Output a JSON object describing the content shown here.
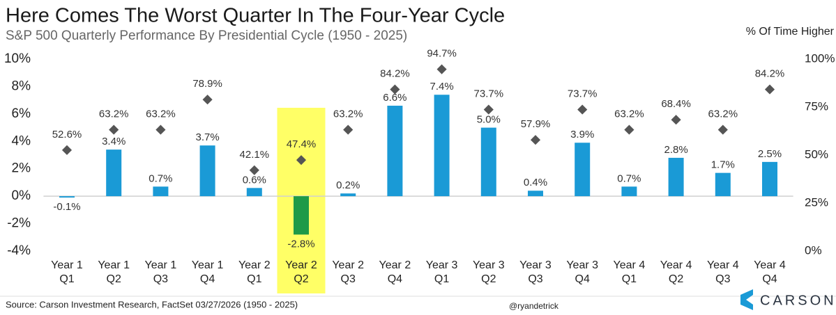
{
  "chart_data": {
    "type": "bar",
    "title": "Here Comes The Worst Quarter In The Four-Year Cycle",
    "subtitle": "S&P 500 Quarterly Performance By Presidential Cycle (1950 - 2025)",
    "y2_label": "% Of Time Higher",
    "categories": [
      "Year 1\nQ1",
      "Year 1\nQ2",
      "Year 1\nQ3",
      "Year 1\nQ4",
      "Year 2\nQ1",
      "Year 2\nQ2",
      "Year 2\nQ3",
      "Year 2\nQ4",
      "Year 3\nQ1",
      "Year 3\nQ2",
      "Year 3\nQ3",
      "Year 3\nQ4",
      "Year 4\nQ1",
      "Year 4\nQ2",
      "Year 4\nQ3",
      "Year 4\nQ4"
    ],
    "series": [
      {
        "type": "bar",
        "colors": [
          "#1a9ad6",
          "#1a9ad6",
          "#1a9ad6",
          "#1a9ad6",
          "#1a9ad6",
          "#1e9a48",
          "#1a9ad6",
          "#1a9ad6",
          "#1a9ad6",
          "#1a9ad6",
          "#1a9ad6",
          "#1a9ad6",
          "#1a9ad6",
          "#1a9ad6",
          "#1a9ad6",
          "#1a9ad6"
        ],
        "values": [
          -0.1,
          3.4,
          0.7,
          3.7,
          0.6,
          -2.8,
          0.2,
          6.6,
          7.4,
          5.0,
          0.4,
          3.9,
          0.7,
          2.8,
          1.7,
          2.5
        ],
        "value_labels": [
          "-0.1%",
          "3.4%",
          "0.7%",
          "3.7%",
          "0.6%",
          "-2.8%",
          "0.2%",
          "6.6%",
          "7.4%",
          "5.0%",
          "0.4%",
          "3.9%",
          "0.7%",
          "2.8%",
          "1.7%",
          "2.5%"
        ]
      },
      {
        "type": "scatter",
        "axis": "y2",
        "color": "#555555",
        "values": [
          52.6,
          63.2,
          63.2,
          78.9,
          42.1,
          47.4,
          63.2,
          84.2,
          94.7,
          73.7,
          57.9,
          73.7,
          63.2,
          68.4,
          63.2,
          84.2
        ],
        "value_labels": [
          "52.6%",
          "63.2%",
          "63.2%",
          "78.9%",
          "42.1%",
          "47.4%",
          "63.2%",
          "84.2%",
          "94.7%",
          "73.7%",
          "57.9%",
          "73.7%",
          "63.2%",
          "68.4%",
          "63.2%",
          "84.2%"
        ]
      }
    ],
    "highlight": {
      "category": 5,
      "color": "#ffff66"
    },
    "ylim": [
      -4,
      10
    ],
    "yticks": [
      {
        "value": -4,
        "label": "-4%"
      },
      {
        "value": -2,
        "label": "-2%"
      },
      {
        "value": 0,
        "label": "0%"
      },
      {
        "value": 2,
        "label": "2%"
      },
      {
        "value": 4,
        "label": "4%"
      },
      {
        "value": 6,
        "label": "6%"
      },
      {
        "value": 8,
        "label": "8%"
      },
      {
        "value": 10,
        "label": "10%"
      }
    ],
    "y2lim": [
      0,
      100
    ],
    "y2ticks": [
      {
        "value": 0,
        "label": "0%"
      },
      {
        "value": 25,
        "label": "25%"
      },
      {
        "value": 50,
        "label": "50%"
      },
      {
        "value": 75,
        "label": "75%"
      },
      {
        "value": 100,
        "label": "100%"
      }
    ],
    "source": "Source: Carson Investment Research, FactSet 03/27/2026 (1950 - 2025)",
    "credit": "@ryandetrick",
    "logo": "CARSON"
  }
}
